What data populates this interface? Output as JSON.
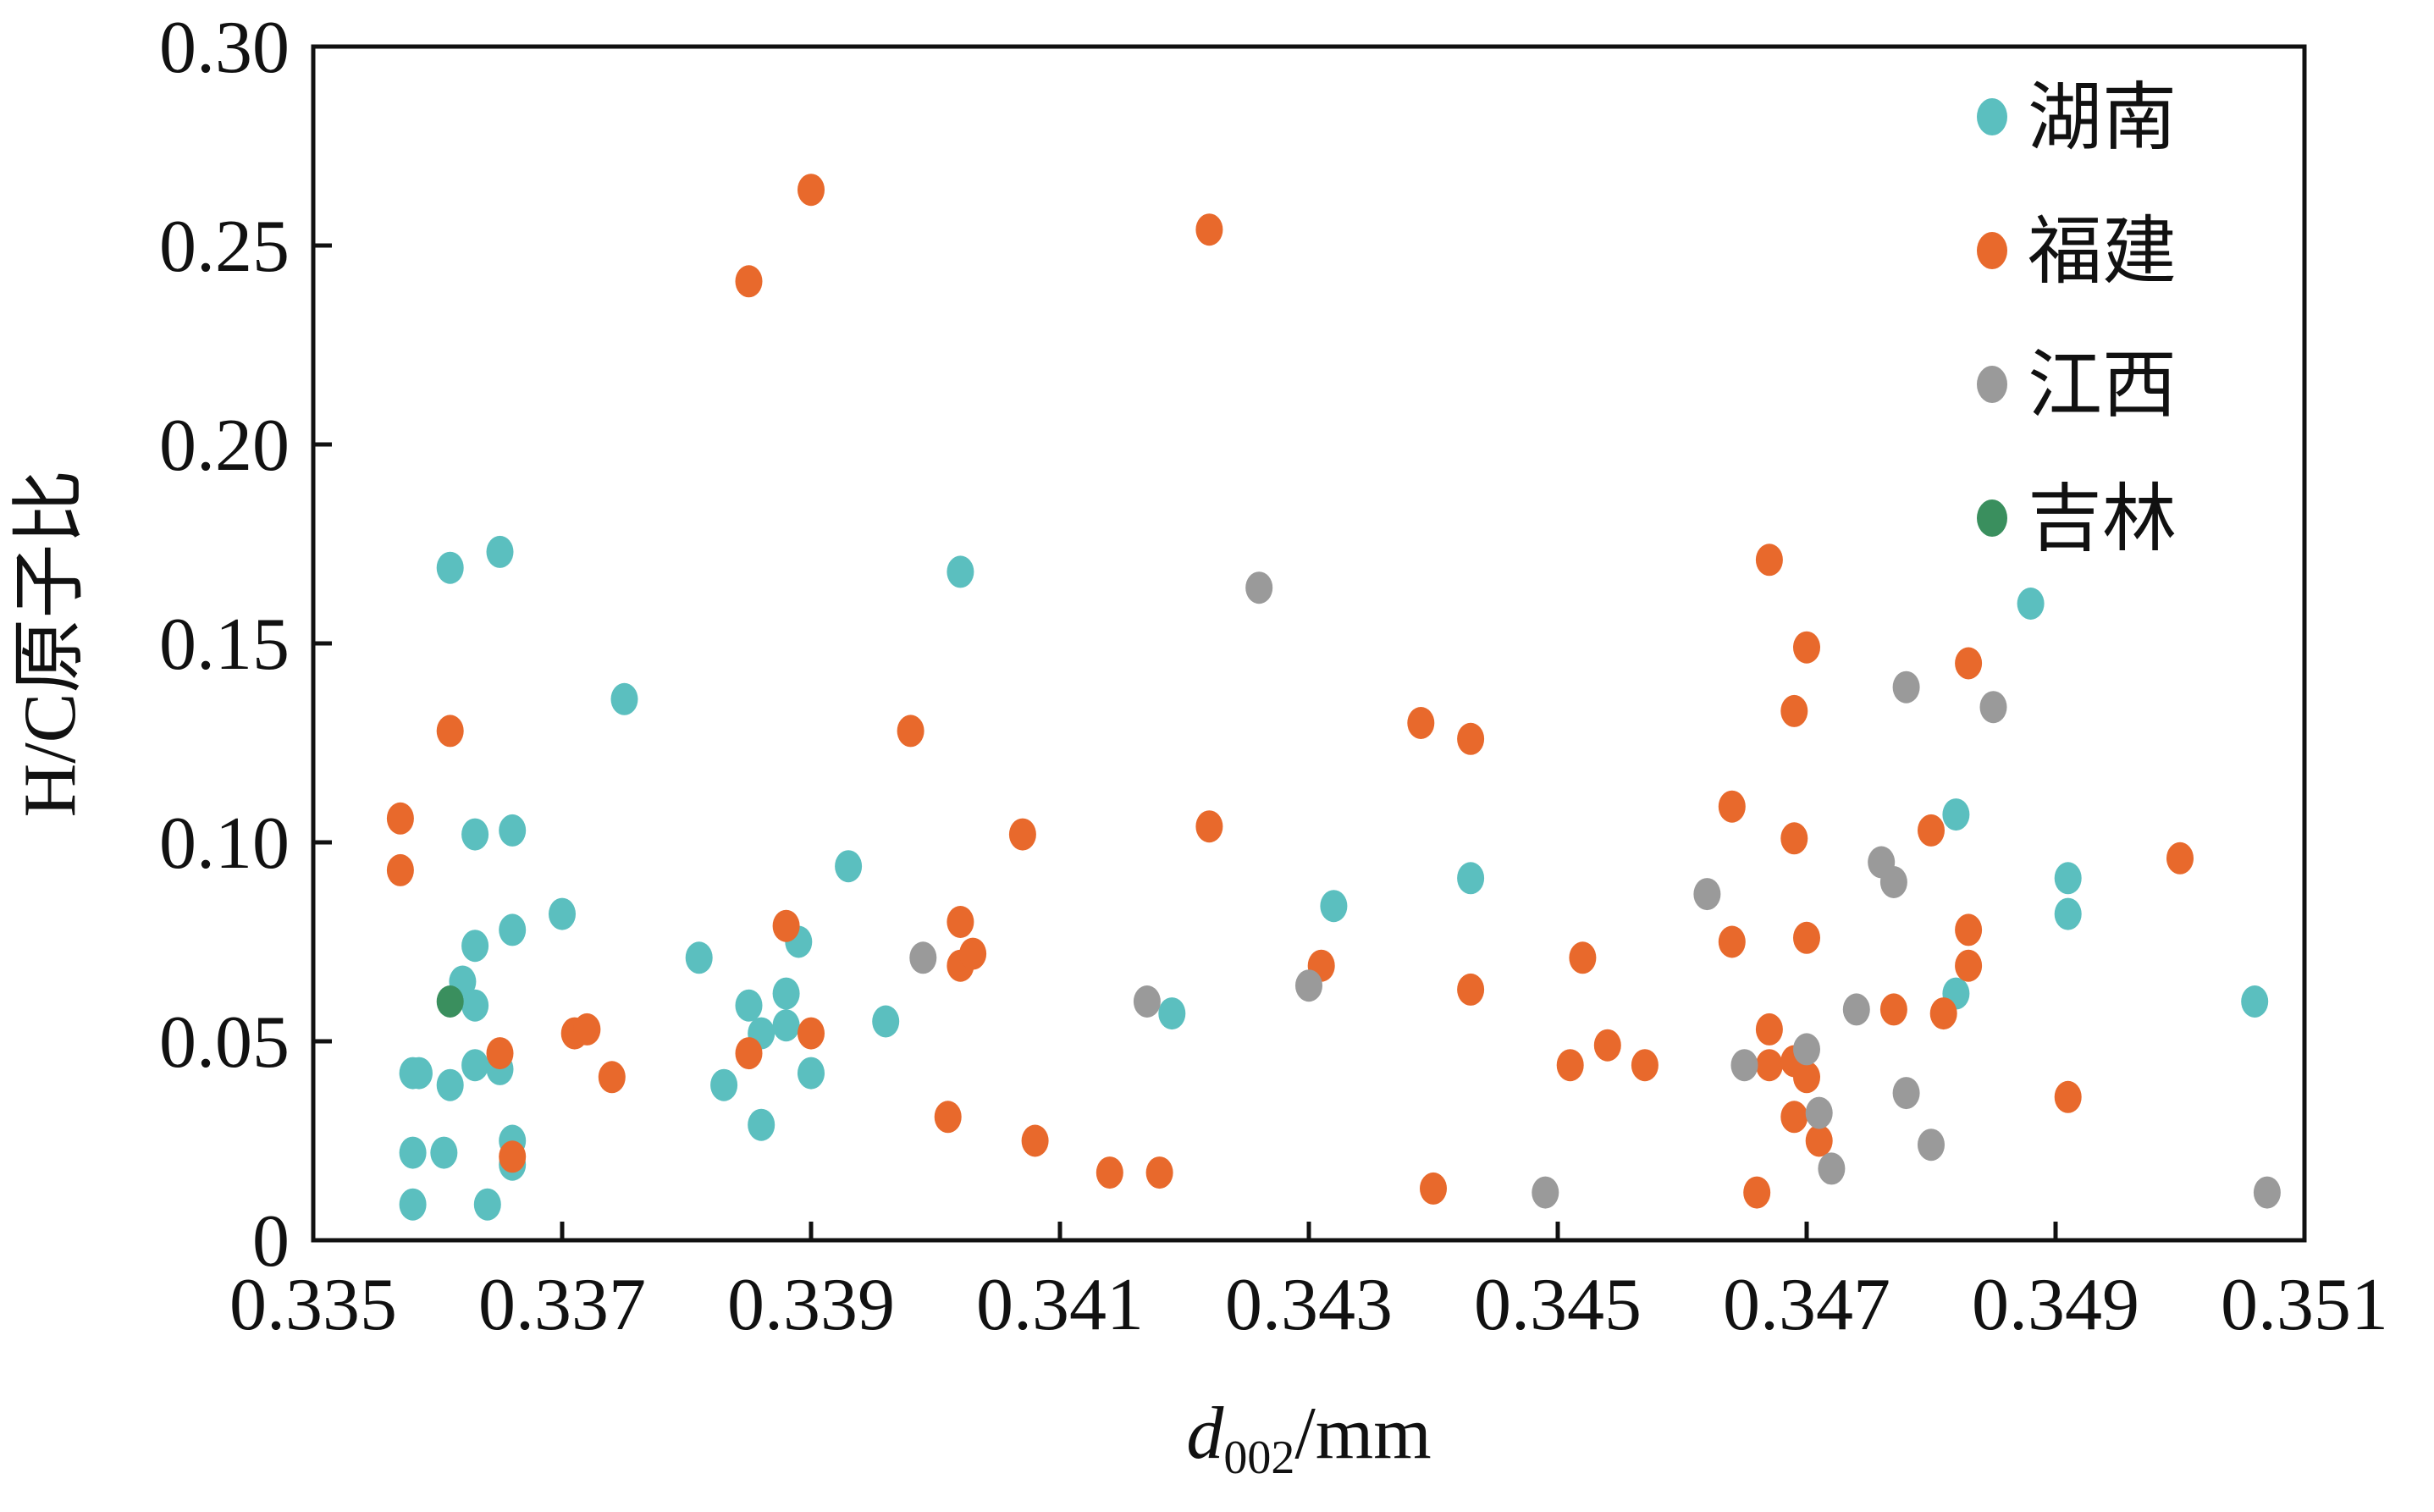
{
  "chart_data": {
    "type": "scatter",
    "xlabel_main": "d",
    "xlabel_sub": "002",
    "xlabel_unit": "/mm",
    "ylabel": "H/C原子比",
    "xlim": [
      0.335,
      0.351
    ],
    "ylim": [
      0,
      0.3
    ],
    "xticks": [
      "0.335",
      "0.337",
      "0.339",
      "0.341",
      "0.343",
      "0.345",
      "0.347",
      "0.349",
      "0.351"
    ],
    "yticks": [
      "0",
      "0.05",
      "0.10",
      "0.15",
      "0.20",
      "0.25",
      "0.30"
    ],
    "legend_position": "top-right",
    "series": [
      {
        "name": "湖南",
        "color": "#5bbfbf",
        "points": [
          [
            0.3358,
            0.042
          ],
          [
            0.33585,
            0.042
          ],
          [
            0.3358,
            0.022
          ],
          [
            0.3358,
            0.009
          ],
          [
            0.3361,
            0.169
          ],
          [
            0.3361,
            0.039
          ],
          [
            0.33605,
            0.022
          ],
          [
            0.3362,
            0.065
          ],
          [
            0.3363,
            0.059
          ],
          [
            0.3363,
            0.102
          ],
          [
            0.3363,
            0.074
          ],
          [
            0.3363,
            0.044
          ],
          [
            0.3364,
            0.009
          ],
          [
            0.3365,
            0.173
          ],
          [
            0.3365,
            0.043
          ],
          [
            0.3366,
            0.103
          ],
          [
            0.3366,
            0.078
          ],
          [
            0.3366,
            0.025
          ],
          [
            0.3366,
            0.019
          ],
          [
            0.337,
            0.082
          ],
          [
            0.3375,
            0.136
          ],
          [
            0.3381,
            0.071
          ],
          [
            0.3383,
            0.039
          ],
          [
            0.3385,
            0.059
          ],
          [
            0.3386,
            0.052
          ],
          [
            0.3386,
            0.029
          ],
          [
            0.3388,
            0.062
          ],
          [
            0.3388,
            0.054
          ],
          [
            0.3389,
            0.075
          ],
          [
            0.339,
            0.042
          ],
          [
            0.3393,
            0.094
          ],
          [
            0.3396,
            0.055
          ],
          [
            0.3402,
            0.168
          ],
          [
            0.3419,
            0.057
          ],
          [
            0.3432,
            0.084
          ],
          [
            0.3443,
            0.091
          ],
          [
            0.3482,
            0.107
          ],
          [
            0.3482,
            0.062
          ],
          [
            0.3488,
            0.16
          ],
          [
            0.3491,
            0.091
          ],
          [
            0.3491,
            0.082
          ],
          [
            0.3506,
            0.06
          ]
        ]
      },
      {
        "name": "福建",
        "color": "#e8692c",
        "points": [
          [
            0.3357,
            0.106
          ],
          [
            0.3357,
            0.093
          ],
          [
            0.3361,
            0.128
          ],
          [
            0.3365,
            0.047
          ],
          [
            0.3366,
            0.021
          ],
          [
            0.3371,
            0.052
          ],
          [
            0.3372,
            0.053
          ],
          [
            0.3374,
            0.041
          ],
          [
            0.3385,
            0.047
          ],
          [
            0.3385,
            0.241
          ],
          [
            0.3388,
            0.079
          ],
          [
            0.339,
            0.052
          ],
          [
            0.339,
            0.264
          ],
          [
            0.3398,
            0.128
          ],
          [
            0.3401,
            0.031
          ],
          [
            0.3402,
            0.08
          ],
          [
            0.3402,
            0.069
          ],
          [
            0.3403,
            0.072
          ],
          [
            0.3407,
            0.102
          ],
          [
            0.3408,
            0.025
          ],
          [
            0.3414,
            0.017
          ],
          [
            0.3418,
            0.017
          ],
          [
            0.3422,
            0.254
          ],
          [
            0.3422,
            0.104
          ],
          [
            0.3431,
            0.069
          ],
          [
            0.3439,
            0.13
          ],
          [
            0.344,
            0.013
          ],
          [
            0.3443,
            0.126
          ],
          [
            0.3443,
            0.063
          ],
          [
            0.3451,
            0.044
          ],
          [
            0.3452,
            0.071
          ],
          [
            0.3454,
            0.049
          ],
          [
            0.3457,
            0.044
          ],
          [
            0.3464,
            0.109
          ],
          [
            0.3464,
            0.075
          ],
          [
            0.3466,
            0.012
          ],
          [
            0.3467,
            0.053
          ],
          [
            0.3467,
            0.044
          ],
          [
            0.3467,
            0.171
          ],
          [
            0.3469,
            0.031
          ],
          [
            0.3469,
            0.045
          ],
          [
            0.3469,
            0.101
          ],
          [
            0.3469,
            0.133
          ],
          [
            0.347,
            0.149
          ],
          [
            0.347,
            0.076
          ],
          [
            0.347,
            0.041
          ],
          [
            0.3471,
            0.025
          ],
          [
            0.3477,
            0.058
          ],
          [
            0.348,
            0.103
          ],
          [
            0.3481,
            0.057
          ],
          [
            0.3483,
            0.145
          ],
          [
            0.3483,
            0.078
          ],
          [
            0.3483,
            0.069
          ],
          [
            0.3491,
            0.036
          ],
          [
            0.35,
            0.096
          ]
        ]
      },
      {
        "name": "江西",
        "color": "#9a9a9a",
        "points": [
          [
            0.3399,
            0.071
          ],
          [
            0.3417,
            0.06
          ],
          [
            0.3426,
            0.164
          ],
          [
            0.343,
            0.064
          ],
          [
            0.3449,
            0.012
          ],
          [
            0.3462,
            0.087
          ],
          [
            0.3465,
            0.044
          ],
          [
            0.347,
            0.048
          ],
          [
            0.3471,
            0.032
          ],
          [
            0.3472,
            0.018
          ],
          [
            0.3474,
            0.058
          ],
          [
            0.3476,
            0.095
          ],
          [
            0.3477,
            0.09
          ],
          [
            0.3478,
            0.139
          ],
          [
            0.3478,
            0.037
          ],
          [
            0.348,
            0.024
          ],
          [
            0.3485,
            0.134
          ],
          [
            0.3507,
            0.012
          ]
        ]
      },
      {
        "name": "吉林",
        "color": "#3a8f5e",
        "points": [
          [
            0.3361,
            0.06
          ]
        ]
      }
    ]
  }
}
